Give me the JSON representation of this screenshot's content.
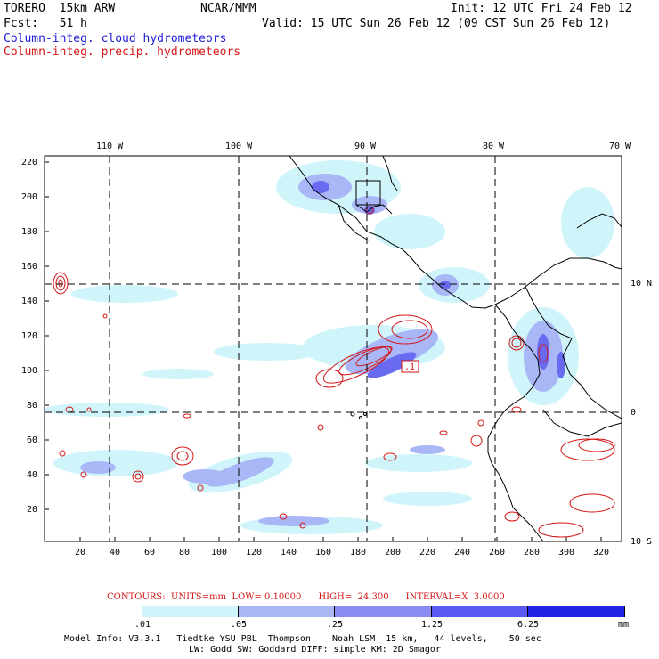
{
  "header": {
    "model_name": "TORERO  15km ARW",
    "center": "NCAR/MMM",
    "init": "Init: 12 UTC Fri 24 Feb 12",
    "fcst": "Fcst:   51 h",
    "valid": "Valid: 15 UTC Sun 26 Feb 12 (09 CST Sun 26 Feb 12)",
    "field1": "Column-integ. cloud hydrometeors",
    "field2": "Column-integ. precip. hydrometeors"
  },
  "axes": {
    "top_lon_labels": [
      "110 W",
      "100 W",
      "90 W",
      "80 W",
      "70 W"
    ],
    "right_lat_labels": [
      "10 N",
      "0",
      "10 S"
    ],
    "left_y_ticks": [
      "220",
      "200",
      "180",
      "160",
      "140",
      "120",
      "100",
      "80",
      "60",
      "40",
      "20"
    ],
    "bottom_x_ticks": [
      "20",
      "40",
      "60",
      "80",
      "100",
      "120",
      "140",
      "160",
      "180",
      "200",
      "220",
      "240",
      "260",
      "280",
      "300",
      "320"
    ]
  },
  "contour_note": {
    "label": "CONTOURS:  UNITS=mm  LOW= 0.10000      HIGH=  24.300      INTERVAL=X  3.0000",
    "max_marker": ".1"
  },
  "colorbar": {
    "levels": [
      ".01",
      ".05",
      ".25",
      "1.25",
      "6.25"
    ],
    "unit": "mm",
    "colors": [
      "#ffffff",
      "#cff5fb",
      "#a9b7f6",
      "#8a8cf2",
      "#5a5af0",
      "#2323e6"
    ]
  },
  "footer": {
    "line1": "Model Info: V3.3.1   Tiedtke YSU PBL  Thompson    Noah LSM  15 km,   44 levels,    50 sec",
    "line2": "LW: Godd SW: Goddard DIFF: simple KM: 2D Smagor"
  },
  "colors": {
    "cloud": "#1d1dd6",
    "precip": "#d41616"
  }
}
